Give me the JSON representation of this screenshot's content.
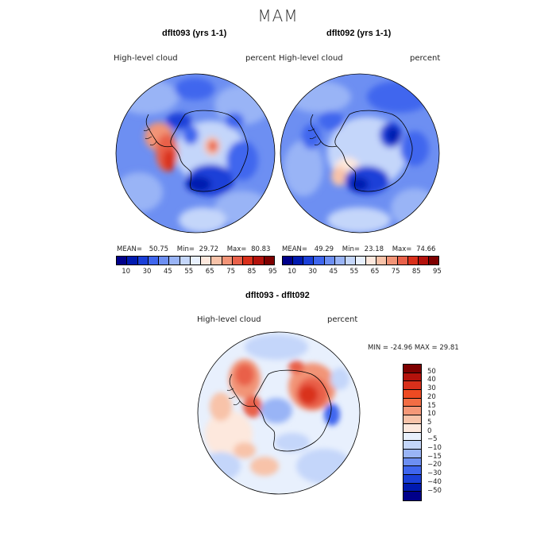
{
  "page": {
    "title": "MAM"
  },
  "panels": [
    {
      "title": "dflt093 (yrs 1-1)",
      "left_label": "High-level cloud",
      "right_label": "percent",
      "stats": {
        "mean_label": "MEAN=",
        "mean": "50.75",
        "min_label": "Min=",
        "min": "29.72",
        "max_label": "Max=",
        "max": "80.83"
      }
    },
    {
      "title": "dflt092 (yrs 1-1)",
      "left_label": "High-level cloud",
      "right_label": "percent",
      "stats": {
        "mean_label": "MEAN=",
        "mean": "49.29",
        "min_label": "Min=",
        "min": "23.18",
        "max_label": "Max=",
        "max": "74.66"
      }
    }
  ],
  "diff": {
    "title": "dflt093 - dflt092",
    "left_label": "High-level cloud",
    "right_label": "percent",
    "minmax": "MIN = -24.96 MAX =  29.81"
  },
  "colorbar_abs": {
    "ticks": [
      "10",
      "30",
      "45",
      "55",
      "65",
      "75",
      "85",
      "95"
    ],
    "colors": [
      "#00008a",
      "#001ab0",
      "#1a3fd8",
      "#3f66ee",
      "#6d8ff2",
      "#99b4f6",
      "#c4d6fa",
      "#e8f0fd",
      "#fde8dd",
      "#f8c3a9",
      "#f29477",
      "#e9614a",
      "#d9301b",
      "#b4120c",
      "#7e0000"
    ]
  },
  "colorbar_diff": {
    "ticks": [
      "50",
      "40",
      "30",
      "20",
      "15",
      "10",
      "5",
      "0",
      "-5",
      "-10",
      "-15",
      "-20",
      "-30",
      "-40",
      "-50"
    ],
    "colors": [
      "#7e0000",
      "#b4120c",
      "#d9301b",
      "#ee4a22",
      "#f26d44",
      "#f59878",
      "#f8c3a9",
      "#fde8dd",
      "#e8f0fd",
      "#c4d6fa",
      "#99b4f6",
      "#6d8ff2",
      "#3f66ee",
      "#1a3fd8",
      "#001ab0",
      "#00008a"
    ]
  }
}
